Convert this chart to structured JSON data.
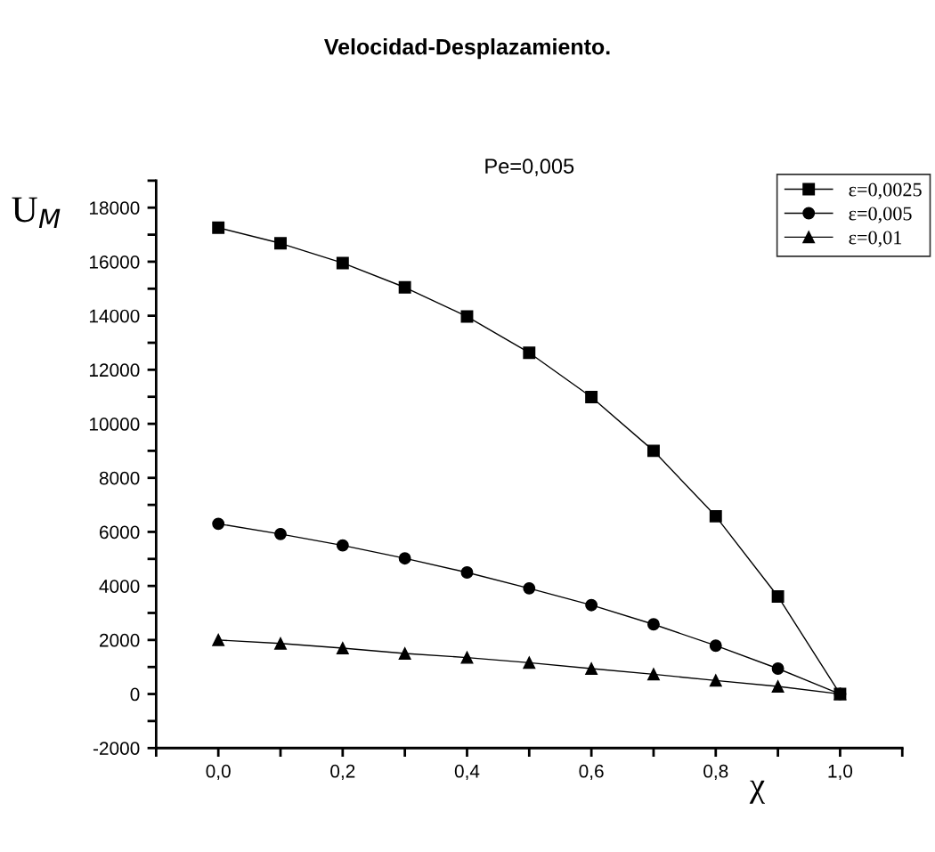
{
  "chart_data": {
    "type": "line",
    "title": "Velocidad-Desplazamiento.",
    "subtitle": "Pe=0,005",
    "xlabel": "χ",
    "ylabel": "U$_{M}$",
    "x": [
      0,
      0.1,
      0.2,
      0.3,
      0.4,
      0.5,
      0.6,
      0.7,
      0.8,
      0.9,
      1.0
    ],
    "series": [
      {
        "name": "ε=0,0025",
        "color": "#000000",
        "marker": "square",
        "values": [
          17260,
          16680,
          15950,
          15050,
          13970,
          12630,
          10990,
          9000,
          6580,
          3610,
          0
        ]
      },
      {
        "name": "ε=0,005",
        "color": "#000000",
        "marker": "circle",
        "values": [
          6300,
          5920,
          5500,
          5020,
          4500,
          3910,
          3290,
          2580,
          1790,
          940,
          0
        ]
      },
      {
        "name": "ε=0,01",
        "color": "#000000",
        "marker": "triangle",
        "values": [
          2000,
          1870,
          1700,
          1500,
          1350,
          1160,
          940,
          730,
          500,
          280,
          0
        ]
      }
    ],
    "xlim": [
      -0.1,
      1.1
    ],
    "xticks": [
      {
        "value": -0.1,
        "label": null
      },
      {
        "value": 0,
        "label": "0,0"
      },
      {
        "value": 0.1,
        "label": null
      },
      {
        "value": 0.2,
        "label": "0,2"
      },
      {
        "value": 0.3,
        "label": null
      },
      {
        "value": 0.4,
        "label": "0,4"
      },
      {
        "value": 0.5,
        "label": null
      },
      {
        "value": 0.6,
        "label": "0,6"
      },
      {
        "value": 0.7,
        "label": null
      },
      {
        "value": 0.8,
        "label": "0,8"
      },
      {
        "value": 0.9,
        "label": null
      },
      {
        "value": 1.0,
        "label": "1,0"
      },
      {
        "value": 1.1,
        "label": null
      }
    ],
    "ylim": [
      -2000,
      19000
    ],
    "yticks": [
      -2000,
      {
        "value": -1000,
        "label": null
      },
      0,
      {
        "value": 1000,
        "label": null
      },
      2000,
      {
        "value": 3000,
        "label": null
      },
      4000,
      {
        "value": 5000,
        "label": null
      },
      6000,
      {
        "value": 7000,
        "label": null
      },
      8000,
      {
        "value": 9000,
        "label": null
      },
      10000,
      {
        "value": 11000,
        "label": null
      },
      12000,
      {
        "value": 13000,
        "label": null
      },
      14000,
      {
        "value": 15000,
        "label": null
      },
      16000,
      {
        "value": 17000,
        "label": null
      },
      18000,
      {
        "value": 19000,
        "label": null
      }
    ],
    "grid": false,
    "legend": "top right",
    "line_style": "solid"
  }
}
